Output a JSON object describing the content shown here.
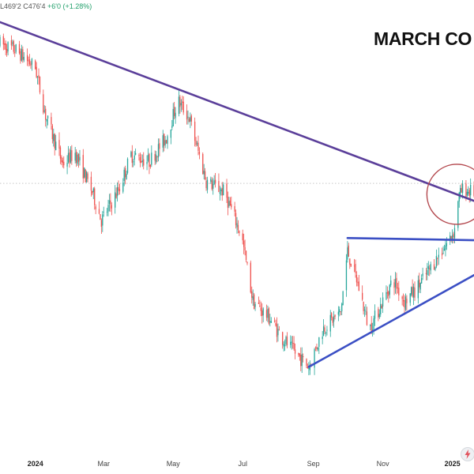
{
  "header": {
    "ohlc_low": "L469'2",
    "ohlc_close": "C476'4",
    "ohlc_change": "+6'0 (+1.28%)"
  },
  "title": "MARCH CO",
  "colors": {
    "bull": "#26a69a",
    "bear": "#ef5350",
    "downtrend_line": "#5b3f9a",
    "support_lines": "#3b4fc4",
    "circle": "#b3474d",
    "price_line": "#c8c8c8"
  },
  "icons": {
    "watermark": "lightning-bolt-icon"
  },
  "chart_data": {
    "type": "candlestick",
    "title": "MARCH CO",
    "x_tick_labels": [
      "2024",
      "Mar",
      "May",
      "Jul",
      "Sep",
      "Nov",
      "2025"
    ],
    "x_range": [
      "2023-12-01",
      "2025-01-20"
    ],
    "y_range": [
      400,
      600
    ],
    "gridlines": false,
    "close_path": [
      [
        "2023-12-01",
        588
      ],
      [
        "2023-12-15",
        585
      ],
      [
        "2024-01-01",
        577
      ],
      [
        "2024-01-10",
        555
      ],
      [
        "2024-01-25",
        533
      ],
      [
        "2024-02-05",
        538
      ],
      [
        "2024-02-20",
        520
      ],
      [
        "2024-02-28",
        507
      ],
      [
        "2024-03-15",
        522
      ],
      [
        "2024-03-25",
        537
      ],
      [
        "2024-04-10",
        534
      ],
      [
        "2024-04-25",
        545
      ],
      [
        "2024-05-05",
        562
      ],
      [
        "2024-05-15",
        554
      ],
      [
        "2024-05-30",
        525
      ],
      [
        "2024-06-15",
        520
      ],
      [
        "2024-06-30",
        500
      ],
      [
        "2024-07-10",
        470
      ],
      [
        "2024-07-25",
        462
      ],
      [
        "2024-08-05",
        453
      ],
      [
        "2024-08-15",
        447
      ],
      [
        "2024-08-28",
        440
      ],
      [
        "2024-09-10",
        458
      ],
      [
        "2024-09-25",
        465
      ],
      [
        "2024-10-01",
        493
      ],
      [
        "2024-10-10",
        478
      ],
      [
        "2024-10-20",
        457
      ],
      [
        "2024-10-30",
        468
      ],
      [
        "2024-11-10",
        480
      ],
      [
        "2024-11-20",
        470
      ],
      [
        "2024-12-01",
        476
      ],
      [
        "2024-12-10",
        483
      ],
      [
        "2024-12-20",
        491
      ],
      [
        "2024-12-28",
        497
      ],
      [
        "2025-01-03",
        503
      ],
      [
        "2025-01-06",
        517
      ],
      [
        "2025-01-10",
        521
      ],
      [
        "2025-01-20",
        520
      ]
    ],
    "trendlines": [
      {
        "name": "downtrend resistance",
        "from": [
          "2023-11-20",
          600
        ],
        "to": [
          "2025-01-20",
          516
        ]
      },
      {
        "name": "horizontal resistance",
        "from": [
          "2024-10-01",
          499
        ],
        "to": [
          "2025-01-20",
          498
        ]
      },
      {
        "name": "rising support",
        "from": [
          "2024-08-28",
          440
        ],
        "to": [
          "2025-01-20",
          482
        ]
      }
    ],
    "highlight": {
      "shape": "circle",
      "center": [
        "2025-01-05",
        519
      ]
    },
    "current_price_line": 524
  }
}
